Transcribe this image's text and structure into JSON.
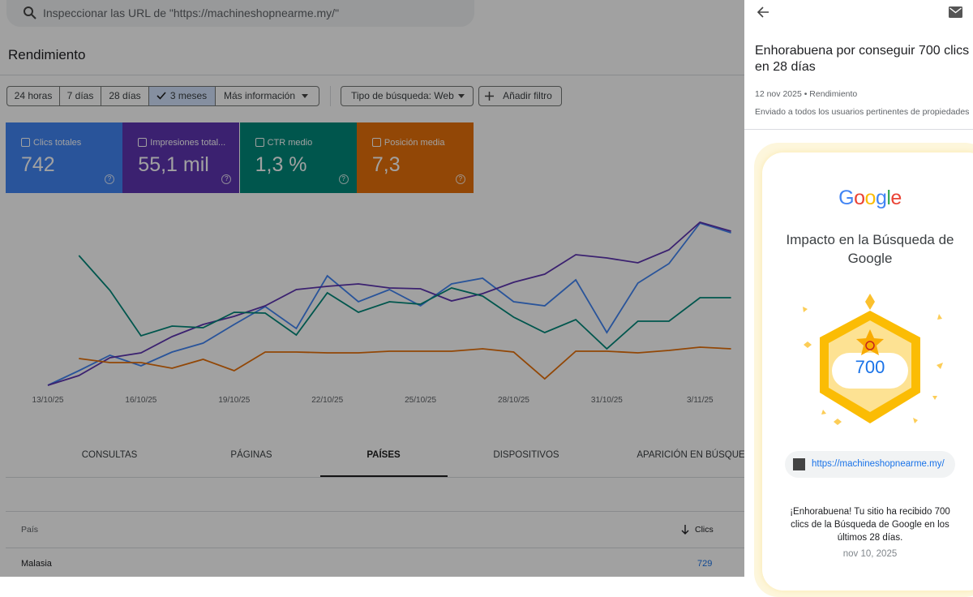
{
  "search": {
    "placeholder": "Inspeccionar las URL de \"https://machineshopnearme.my/\""
  },
  "section_title": "Rendimiento",
  "filters": {
    "ranges": [
      "24 horas",
      "7 días",
      "28 días",
      "3 meses",
      "Más información"
    ],
    "search_type": "Tipo de búsqueda: Web",
    "add_filter": "Añadir filtro"
  },
  "metrics": [
    {
      "label": "Clics totales",
      "value": 742,
      "color": "#4285f4"
    },
    {
      "label": "Impresiones total...",
      "value": "55,1 mil",
      "color": "#5e35b1"
    },
    {
      "label": "CTR medio",
      "value": "1,3 %",
      "color": "#00897b"
    },
    {
      "label": "Posición media",
      "value": "7,3",
      "color": "#e8710a"
    }
  ],
  "chart_data": {
    "type": "line",
    "categories": [
      "13/10/25",
      null,
      null,
      "16/10/25",
      null,
      null,
      "19/10/25",
      null,
      null,
      "22/10/25",
      null,
      null,
      "25/10/25",
      null,
      null,
      "28/10/25",
      null,
      null,
      "31/10/25",
      null,
      null,
      "3/11/25",
      null
    ],
    "ylim": [
      0,
      230
    ],
    "series": [
      {
        "color": "#4285f4",
        "values": [
          0,
          18,
          37,
          24,
          41,
          52,
          75,
          97,
          70,
          135,
          103,
          118,
          98,
          125,
          132,
          103,
          98,
          130,
          65,
          126,
          150,
          200,
          188
        ]
      },
      {
        "color": "#5e35b1",
        "values": [
          0,
          12,
          34,
          40,
          60,
          75,
          85,
          98,
          118,
          122,
          125,
          120,
          119,
          104,
          113,
          127,
          137,
          161,
          157,
          151,
          167,
          201,
          190
        ]
      },
      {
        "color": "#00897b",
        "values": [
          null,
          160,
          117,
          61,
          73,
          71,
          90,
          89,
          62,
          114,
          90,
          103,
          100,
          120,
          110,
          84,
          65,
          81,
          45,
          79,
          79,
          108,
          108
        ]
      },
      {
        "color": "#e8710a",
        "values": [
          null,
          33,
          28,
          28,
          21,
          32,
          18,
          41,
          41,
          40,
          40,
          42,
          42,
          42,
          45,
          41,
          8,
          42,
          42,
          40,
          43,
          47,
          45
        ]
      }
    ]
  },
  "tabs": [
    "CONSULTAS",
    "PÁGINAS",
    "PAÍSES",
    "DISPOSITIVOS",
    "APARICIÓN EN BÚSQUEDA"
  ],
  "table": {
    "headers": [
      "País",
      "Clics"
    ],
    "rows": [
      [
        "Malasia",
        729
      ]
    ]
  },
  "panel": {
    "title": "Enhorabuena por conseguir 700 clics en 28 días",
    "meta": "12 nov 2025 • Rendimiento",
    "audience": "Enviado a todos los usuarios pertinentes de propiedades",
    "card": {
      "logo": "Google",
      "heading": "Impacto en la Búsqueda de Google",
      "badge": 700,
      "url": "https://machineshopnearme.my/",
      "message": "¡Enhorabuena! Tu sitio ha recibido 700 clics de la Búsqueda de Google en los últimos 28 días.",
      "date": "nov 10, 2025"
    }
  }
}
